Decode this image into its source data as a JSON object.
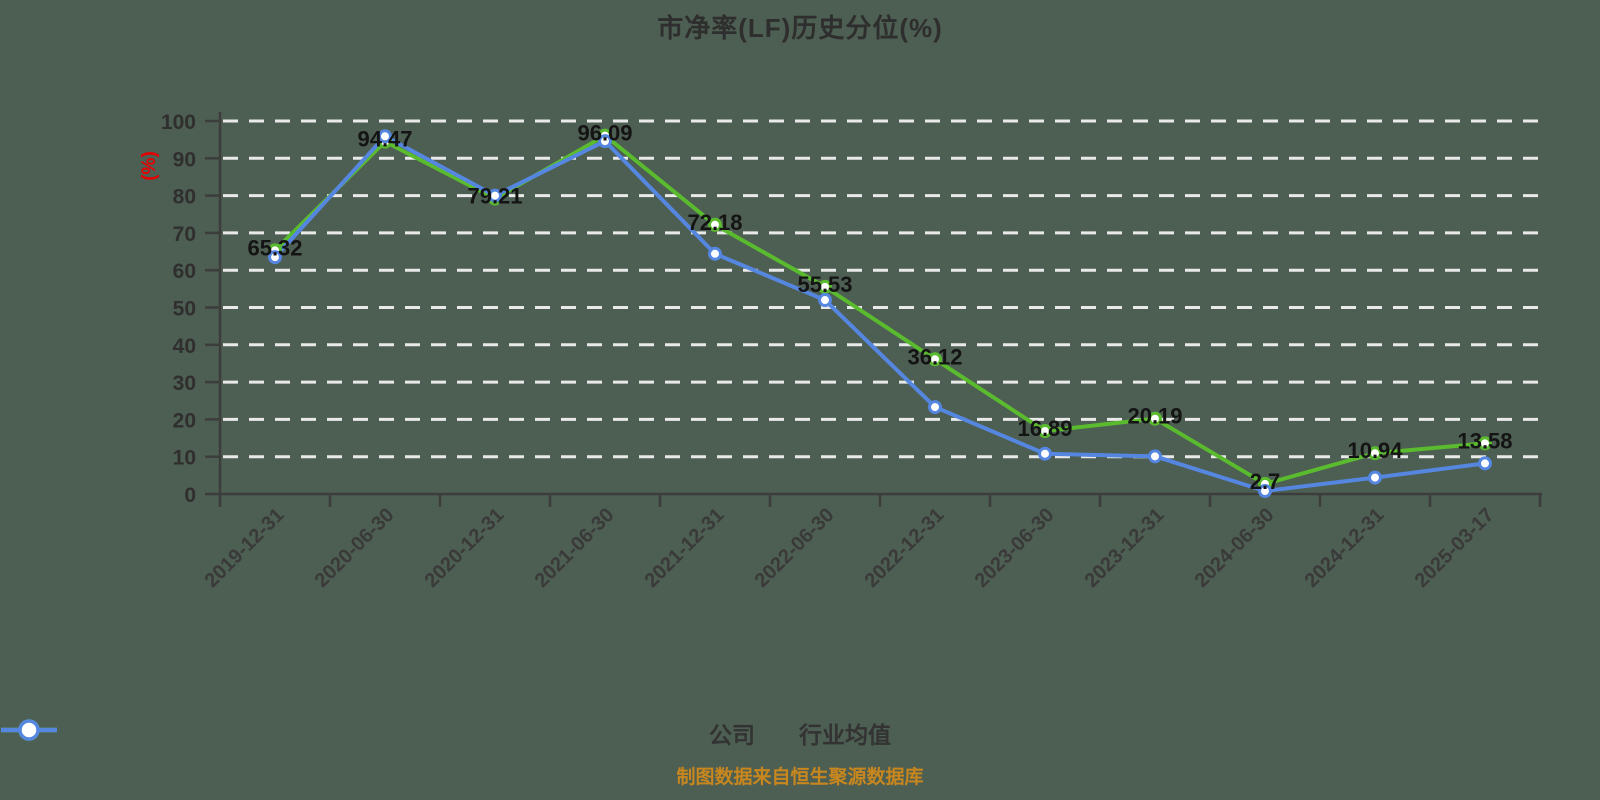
{
  "title": "市净率(LF)历史分位(%)",
  "source_note": "制图数据来自恒生聚源数据库",
  "colors": {
    "background": "#4d5e52",
    "grid": "#e9e9e9",
    "axis": "#3d3d3d",
    "tick_label": "#2f2f2f",
    "value_label": "#141414",
    "title": "#2e2e2e",
    "ylabel_red": "#e60000",
    "footer": "#c8871e",
    "legend_text": "#333333",
    "company": "#5abb2f",
    "industry_average": "#5586e0",
    "marker_fill": "#ffffff"
  },
  "chart_data": {
    "type": "line",
    "title": "市净率(LF)历史分位(%)",
    "xlabel": "",
    "ylabel": "(%)",
    "ylim": [
      0,
      100
    ],
    "ytick_step": 10,
    "grid": "horizontal-dashed",
    "legend_position": "bottom-center",
    "categories": [
      "2019-12-31",
      "2020-06-30",
      "2020-12-31",
      "2021-06-30",
      "2021-12-31",
      "2022-06-30",
      "2022-12-31",
      "2023-06-30",
      "2023-12-31",
      "2024-06-30",
      "2024-12-31",
      "2025-03-17"
    ],
    "series": [
      {
        "id": "company",
        "name": "公司",
        "color": "#5abb2f",
        "show_point_labels": true,
        "values": [
          65.32,
          94.47,
          79.21,
          96.09,
          72.18,
          55.53,
          36.12,
          16.89,
          20.19,
          2.7,
          10.94,
          13.58
        ]
      },
      {
        "id": "industry-average",
        "name": "行业均值",
        "color": "#5586e0",
        "show_point_labels": false,
        "values": [
          63.5,
          95.9,
          80.0,
          94.6,
          64.4,
          52.0,
          23.3,
          10.8,
          10.1,
          0.8,
          4.4,
          8.2
        ]
      }
    ]
  }
}
